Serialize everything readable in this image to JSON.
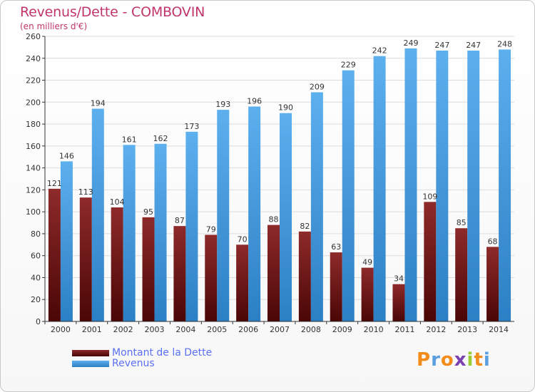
{
  "chart_data": {
    "type": "bar",
    "title": "Revenus/Dette - COMBOVIN",
    "subtitle": "(en milliers d'€)",
    "categories": [
      "2000",
      "2001",
      "2002",
      "2003",
      "2004",
      "2005",
      "2006",
      "2007",
      "2008",
      "2009",
      "2010",
      "2011",
      "2012",
      "2013",
      "2014"
    ],
    "series": [
      {
        "name": "Montant de la Dette",
        "values": [
          121,
          113,
          104,
          95,
          87,
          79,
          70,
          88,
          82,
          63,
          49,
          34,
          109,
          85,
          68
        ],
        "color": "#7a1a1a"
      },
      {
        "name": "Revenus",
        "values": [
          146,
          194,
          161,
          162,
          173,
          193,
          196,
          190,
          209,
          229,
          242,
          249,
          247,
          247,
          248
        ],
        "color": "#4aa3e8"
      }
    ],
    "ylim": [
      0,
      260
    ],
    "yticks": [
      0,
      20,
      40,
      60,
      80,
      100,
      120,
      140,
      160,
      180,
      200,
      220,
      240,
      260
    ],
    "grid": true,
    "legend": "bottom-left"
  },
  "legend": {
    "items": [
      {
        "label": "Montant de la Dette",
        "color": "#6e1414"
      },
      {
        "label": "Revenus",
        "color": "#3e9be4"
      }
    ]
  },
  "logo": {
    "letters": [
      "P",
      "r",
      "o",
      "x",
      "i",
      "t",
      "i"
    ],
    "colors": [
      "#f28c1a",
      "#5aa0e0",
      "#f28c1a",
      "#7a3fb0",
      "#9acd32",
      "#f28c1a",
      "#5aa0e0"
    ]
  }
}
